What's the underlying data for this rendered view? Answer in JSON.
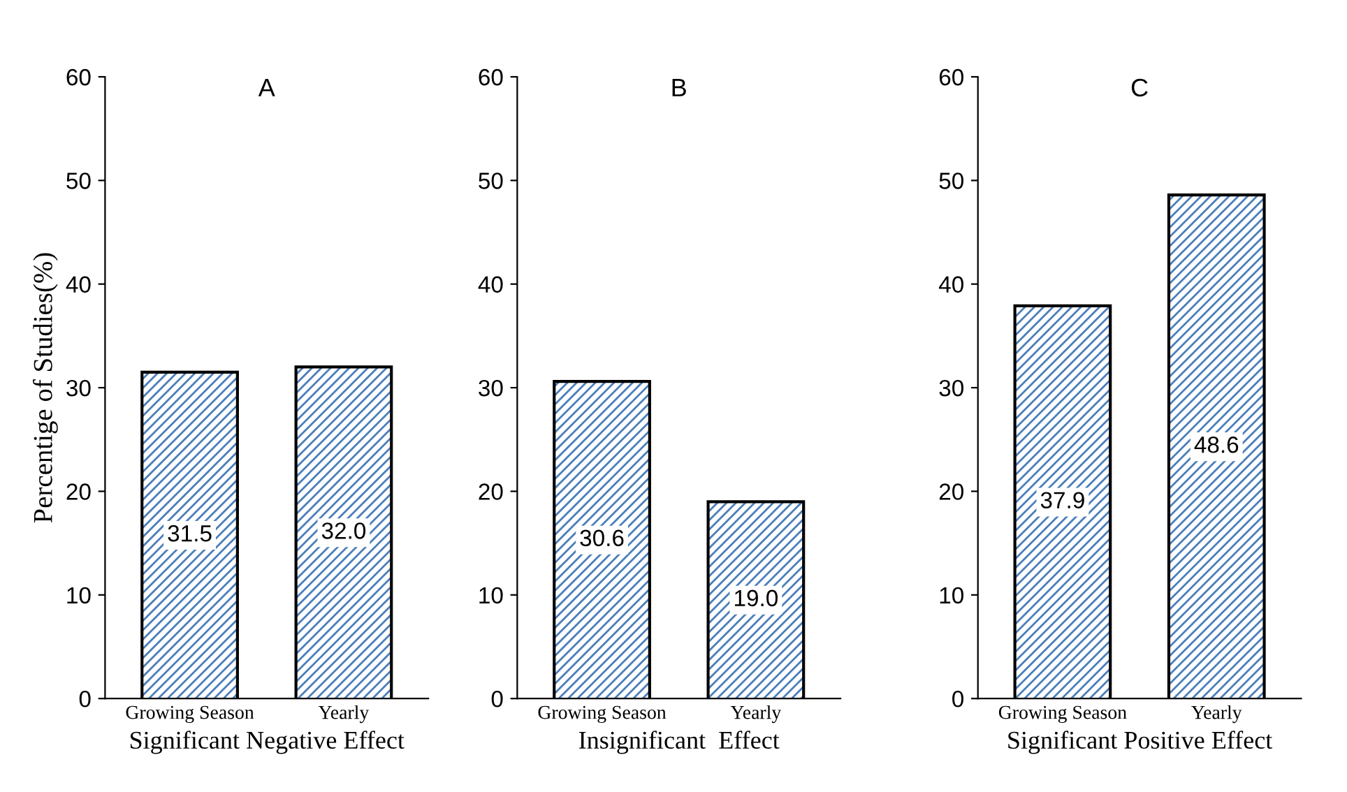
{
  "chart_data": [
    {
      "type": "bar",
      "title": "A",
      "xlabel": "Significant Negative Effect",
      "ylabel": "Percentige of Studies(%)",
      "categories": [
        "Growing Season",
        "Yearly"
      ],
      "values": [
        31.5,
        32.0
      ],
      "value_labels": [
        "31.5",
        "32.0"
      ],
      "color": "#4a7ebb",
      "ylim": [
        0,
        60
      ],
      "yticks": [
        0,
        10,
        20,
        30,
        40,
        50,
        60
      ],
      "grid": false,
      "legend": false
    },
    {
      "type": "bar",
      "title": "B",
      "xlabel": "Insignificant  Effect",
      "categories": [
        "Growing Season",
        "Yearly"
      ],
      "values": [
        30.6,
        19.0
      ],
      "value_labels": [
        "30.6",
        "19.0"
      ],
      "color": "#4a7ebb",
      "ylim": [
        0,
        60
      ],
      "yticks": [
        0,
        10,
        20,
        30,
        40,
        50,
        60
      ],
      "grid": false,
      "legend": false
    },
    {
      "type": "bar",
      "title": "C",
      "xlabel": "Significant Positive Effect",
      "categories": [
        "Growing Season",
        "Yearly"
      ],
      "values": [
        37.9,
        48.6
      ],
      "value_labels": [
        "37.9",
        "48.6"
      ],
      "color": "#4a7ebb",
      "ylim": [
        0,
        60
      ],
      "yticks": [
        0,
        10,
        20,
        30,
        40,
        50,
        60
      ],
      "grid": false,
      "legend": false
    }
  ]
}
